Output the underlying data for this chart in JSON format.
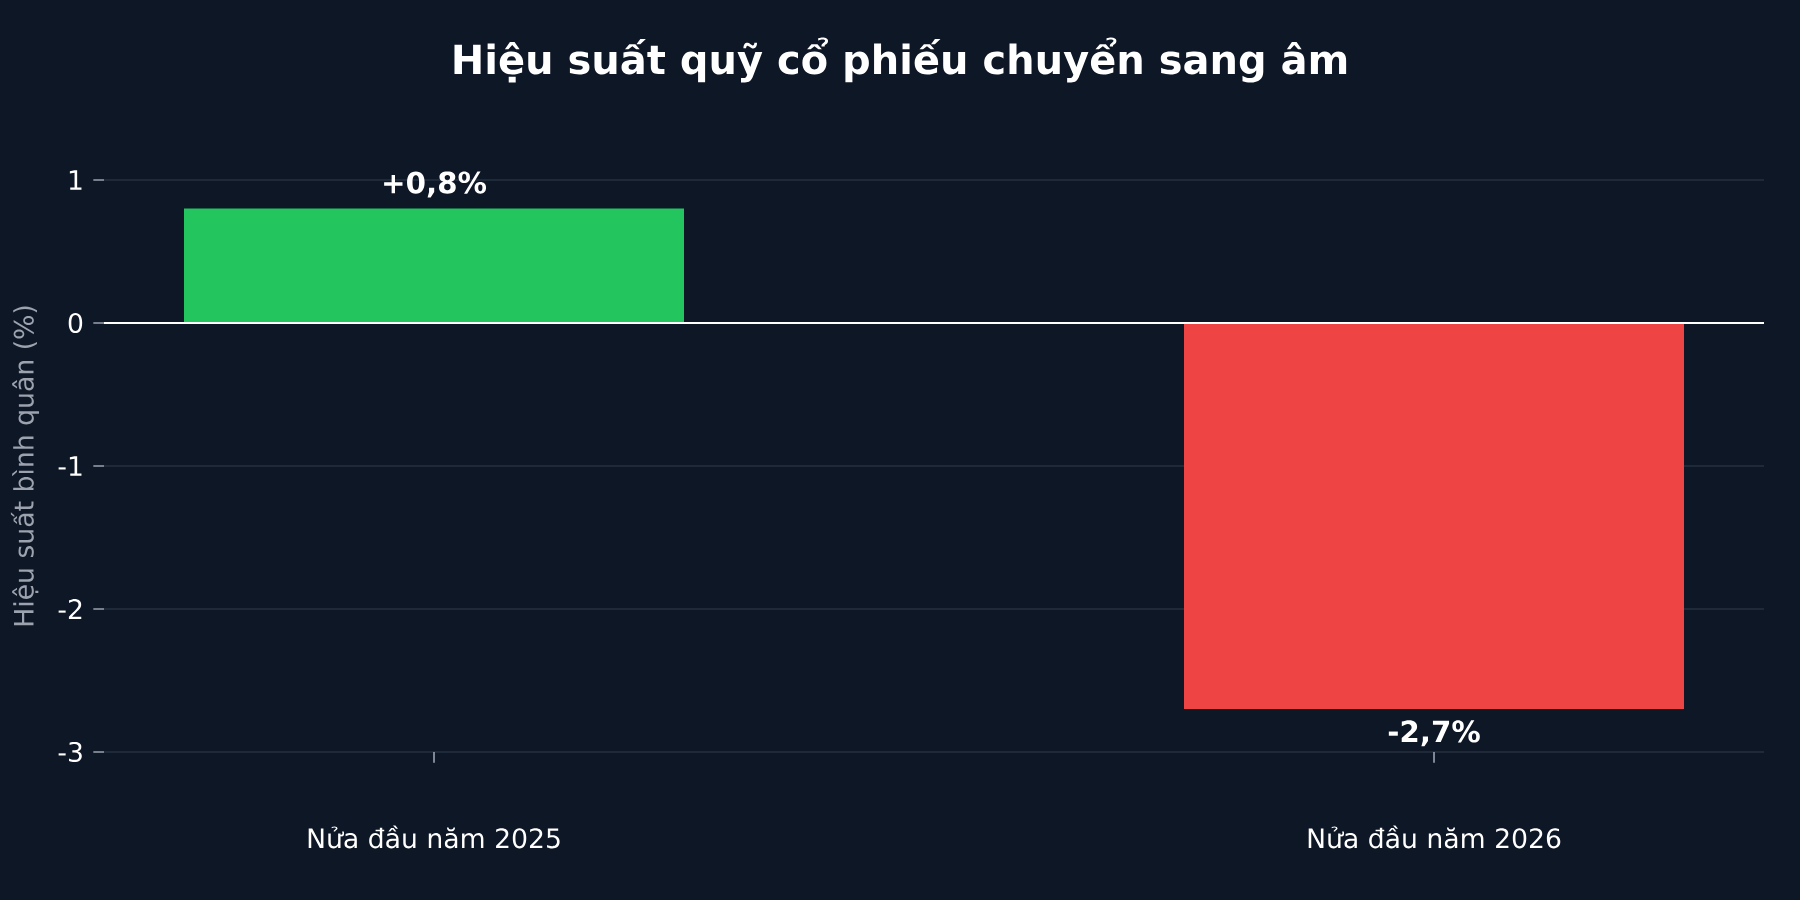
{
  "chart_data": {
    "type": "bar",
    "title": "Hiệu suất quỹ cổ phiếu chuyển sang âm",
    "ylabel": "Hiệu suất bình quân (%)",
    "categories": [
      "Nửa đầu năm 2025",
      "Nửa đầu năm 2026"
    ],
    "values": [
      0.8,
      -2.7
    ],
    "colors": [
      "#22c55e",
      "#ef4444"
    ],
    "value_labels": [
      "+0,8%",
      "-2,7%"
    ],
    "ylim": [
      -3,
      1
    ],
    "yticks": [
      -3,
      -2,
      -1,
      0,
      1
    ],
    "ref_lines": [
      {
        "axis": "y",
        "value": 0,
        "color": "#ffffff"
      }
    ],
    "grid": "y"
  }
}
